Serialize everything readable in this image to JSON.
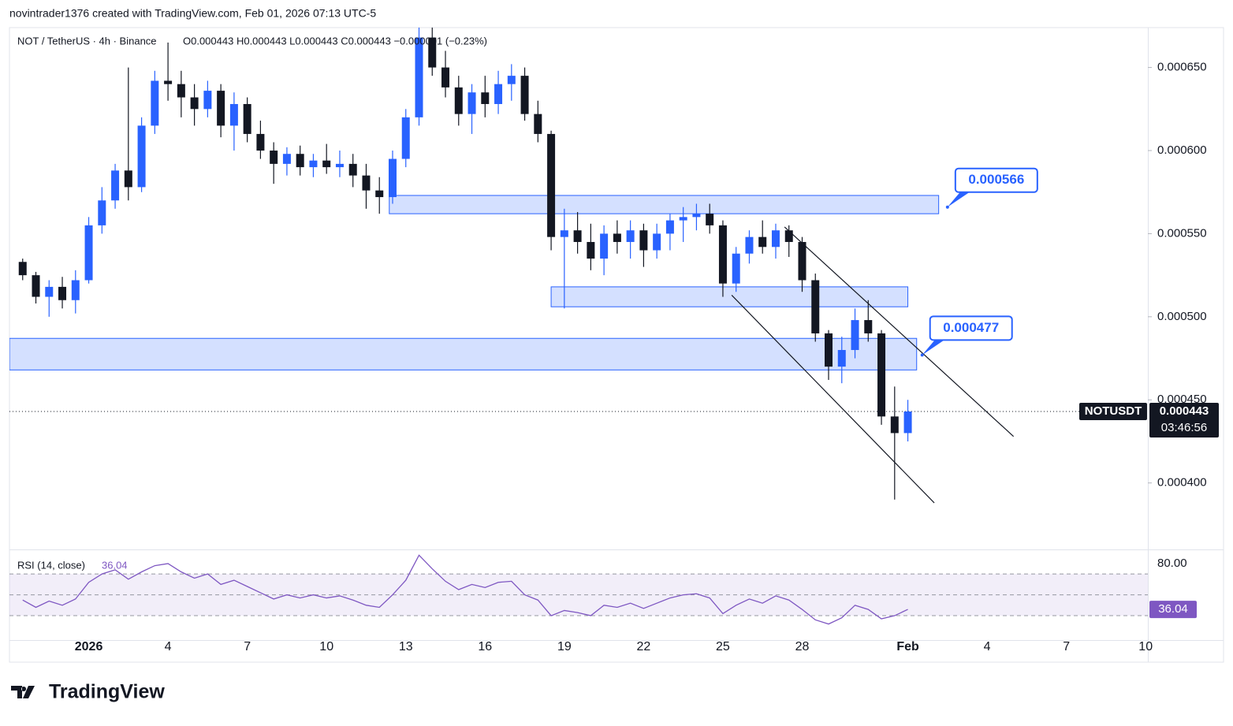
{
  "header": "novintrader1376 created with TradingView.com, Feb 01, 2026 07:13 UTC-5",
  "brand": "TradingView",
  "chart_data": [
    {
      "type": "candlestick",
      "title": "NOT / TetherUS · 4h · Binance",
      "ohlc_text": "O0.000443 H0.000443 L0.000443 C0.000443 −0.000001 (−0.23%)",
      "symbol": "NOTUSDT",
      "countdown": "03:46:56",
      "last_price": 0.000443,
      "up_color": "#2962ff",
      "down_color": "#131722",
      "x": [
        "2025-12-29T12:00",
        "2025-12-30T00:00",
        "2025-12-30T12:00",
        "2025-12-31T00:00",
        "2025-12-31T12:00",
        "2026-01-01T00:00",
        "2026-01-01T12:00",
        "2026-01-02T00:00",
        "2026-01-02T12:00",
        "2026-01-03T00:00",
        "2026-01-03T12:00",
        "2026-01-04T00:00",
        "2026-01-04T12:00",
        "2026-01-05T00:00",
        "2026-01-05T12:00",
        "2026-01-06T00:00",
        "2026-01-06T12:00",
        "2026-01-07T00:00",
        "2026-01-07T12:00",
        "2026-01-08T00:00",
        "2026-01-08T12:00",
        "2026-01-09T00:00",
        "2026-01-09T12:00",
        "2026-01-10T00:00",
        "2026-01-10T12:00",
        "2026-01-11T00:00",
        "2026-01-11T12:00",
        "2026-01-12T00:00",
        "2026-01-12T12:00",
        "2026-01-13T00:00",
        "2026-01-13T12:00",
        "2026-01-14T00:00",
        "2026-01-14T12:00",
        "2026-01-15T00:00",
        "2026-01-15T12:00",
        "2026-01-16T00:00",
        "2026-01-16T12:00",
        "2026-01-17T00:00",
        "2026-01-17T12:00",
        "2026-01-18T00:00",
        "2026-01-18T12:00",
        "2026-01-19T00:00",
        "2026-01-19T12:00",
        "2026-01-20T00:00",
        "2026-01-20T12:00",
        "2026-01-21T00:00",
        "2026-01-21T12:00",
        "2026-01-22T00:00",
        "2026-01-22T12:00",
        "2026-01-23T00:00",
        "2026-01-23T12:00",
        "2026-01-24T00:00",
        "2026-01-24T12:00",
        "2026-01-25T00:00",
        "2026-01-25T12:00",
        "2026-01-26T00:00",
        "2026-01-26T12:00",
        "2026-01-27T00:00",
        "2026-01-27T12:00",
        "2026-01-28T00:00",
        "2026-01-28T12:00",
        "2026-01-29T00:00",
        "2026-01-29T12:00",
        "2026-01-30T00:00",
        "2026-01-30T12:00",
        "2026-01-31T00:00",
        "2026-01-31T12:00",
        "2026-02-01T00:00"
      ],
      "open": [
        0.000533,
        0.000525,
        0.000512,
        0.000518,
        0.00051,
        0.000522,
        0.000555,
        0.00057,
        0.000588,
        0.000578,
        0.000615,
        0.000642,
        0.00064,
        0.000632,
        0.000625,
        0.000636,
        0.000615,
        0.000628,
        0.00061,
        0.0006,
        0.000592,
        0.000598,
        0.00059,
        0.000594,
        0.00059,
        0.000592,
        0.000585,
        0.000576,
        0.000572,
        0.000595,
        0.00062,
        0.000668,
        0.00065,
        0.000638,
        0.000622,
        0.000635,
        0.000628,
        0.00064,
        0.000645,
        0.000622,
        0.00061,
        0.000548,
        0.000552,
        0.000545,
        0.000535,
        0.00055,
        0.000545,
        0.000552,
        0.00054,
        0.00055,
        0.000558,
        0.00056,
        0.000562,
        0.000555,
        0.00052,
        0.000538,
        0.000548,
        0.000542,
        0.000552,
        0.000545,
        0.000522,
        0.00049,
        0.00047,
        0.00048,
        0.000498,
        0.00049,
        0.00044,
        0.00043
      ],
      "high": [
        0.000535,
        0.000527,
        0.000522,
        0.000524,
        0.000528,
        0.00056,
        0.000578,
        0.000592,
        0.00065,
        0.00062,
        0.000648,
        0.000665,
        0.000648,
        0.00064,
        0.000642,
        0.00064,
        0.000635,
        0.000632,
        0.000618,
        0.000605,
        0.000602,
        0.000603,
        0.000598,
        0.000604,
        0.0006,
        0.000598,
        0.000592,
        0.000584,
        0.0006,
        0.000625,
        0.000674,
        0.000674,
        0.00066,
        0.000645,
        0.00064,
        0.000645,
        0.000648,
        0.000652,
        0.00065,
        0.00063,
        0.000612,
        0.000565,
        0.000563,
        0.000556,
        0.000555,
        0.000558,
        0.000558,
        0.000556,
        0.000556,
        0.000562,
        0.000566,
        0.000568,
        0.000568,
        0.000558,
        0.000542,
        0.000552,
        0.000558,
        0.000556,
        0.000555,
        0.000548,
        0.000526,
        0.000492,
        0.000488,
        0.000505,
        0.00051,
        0.000492,
        0.000458,
        0.00045
      ],
      "low": [
        0.000522,
        0.000508,
        0.0005,
        0.000505,
        0.000502,
        0.00052,
        0.00055,
        0.000565,
        0.00057,
        0.000575,
        0.00061,
        0.00063,
        0.00062,
        0.000615,
        0.00062,
        0.000608,
        0.0006,
        0.000605,
        0.000595,
        0.00058,
        0.000585,
        0.000585,
        0.000584,
        0.000586,
        0.000584,
        0.000578,
        0.000565,
        0.000562,
        0.000568,
        0.00059,
        0.000615,
        0.000645,
        0.000632,
        0.000615,
        0.00061,
        0.00062,
        0.000622,
        0.00063,
        0.000618,
        0.000605,
        0.00054,
        0.000505,
        0.000538,
        0.000528,
        0.000525,
        0.000538,
        0.000535,
        0.00053,
        0.000535,
        0.00054,
        0.000545,
        0.000552,
        0.00055,
        0.000512,
        0.000515,
        0.000532,
        0.000538,
        0.000535,
        0.000536,
        0.000515,
        0.000485,
        0.000462,
        0.00046,
        0.000475,
        0.000485,
        0.000435,
        0.00039,
        0.000425
      ],
      "close": [
        0.000525,
        0.000512,
        0.000518,
        0.00051,
        0.000522,
        0.000555,
        0.00057,
        0.000588,
        0.000578,
        0.000615,
        0.000642,
        0.00064,
        0.000632,
        0.000625,
        0.000636,
        0.000615,
        0.000628,
        0.00061,
        0.0006,
        0.000592,
        0.000598,
        0.00059,
        0.000594,
        0.00059,
        0.000592,
        0.000585,
        0.000576,
        0.000572,
        0.000595,
        0.00062,
        0.000668,
        0.00065,
        0.000638,
        0.000622,
        0.000635,
        0.000628,
        0.00064,
        0.000645,
        0.000622,
        0.00061,
        0.000548,
        0.000552,
        0.000545,
        0.000535,
        0.00055,
        0.000545,
        0.000552,
        0.00054,
        0.00055,
        0.000558,
        0.00056,
        0.000562,
        0.000555,
        0.00052,
        0.000538,
        0.000548,
        0.000542,
        0.000552,
        0.000545,
        0.000522,
        0.00049,
        0.00047,
        0.00048,
        0.000498,
        0.00049,
        0.00044,
        0.00043,
        0.000443
      ],
      "xlim": [
        "2025-12-29T00:00",
        "2026-02-10T02:00"
      ],
      "xticks": [
        {
          "value": "2026-01-01T00:00",
          "label": "2026"
        },
        {
          "value": "2026-01-04T00:00",
          "label": "4"
        },
        {
          "value": "2026-01-07T00:00",
          "label": "7"
        },
        {
          "value": "2026-01-10T00:00",
          "label": "10"
        },
        {
          "value": "2026-01-13T00:00",
          "label": "13"
        },
        {
          "value": "2026-01-16T00:00",
          "label": "16"
        },
        {
          "value": "2026-01-19T00:00",
          "label": "19"
        },
        {
          "value": "2026-01-22T00:00",
          "label": "22"
        },
        {
          "value": "2026-01-25T00:00",
          "label": "25"
        },
        {
          "value": "2026-01-28T00:00",
          "label": "28"
        },
        {
          "value": "2026-02-01T00:00",
          "label": "Feb"
        },
        {
          "value": "2026-02-04T00:00",
          "label": "4"
        },
        {
          "value": "2026-02-07T00:00",
          "label": "7"
        },
        {
          "value": "2026-02-10T00:00",
          "label": "10"
        }
      ],
      "ylim": [
        0.00036,
        0.000674
      ],
      "yticks": [
        {
          "value": 0.0004,
          "label": "0.000400"
        },
        {
          "value": 0.00045,
          "label": "0.000450"
        },
        {
          "value": 0.0005,
          "label": "0.000500"
        },
        {
          "value": 0.00055,
          "label": "0.000550"
        },
        {
          "value": 0.0006,
          "label": "0.000600"
        },
        {
          "value": 0.00065,
          "label": "0.000650"
        }
      ],
      "zones": [
        {
          "x": [
            "2026-01-12T09:00",
            "2026-02-02T04:00"
          ],
          "range": [
            0.000562,
            0.000573
          ]
        },
        {
          "x": [
            "2026-01-18T12:00",
            "2026-02-01T00:00"
          ],
          "range": [
            0.000506,
            0.000518
          ]
        },
        {
          "x": [
            "2025-12-29T00:00",
            "2026-02-01T08:00"
          ],
          "range": [
            0.000468,
            0.000487
          ]
        }
      ],
      "trendlines": [
        {
          "x": [
            "2026-01-27T08:00",
            "2026-02-05T00:00"
          ],
          "y": [
            0.000554,
            0.000428
          ]
        },
        {
          "x": [
            "2026-01-25T08:00",
            "2026-02-02T00:00"
          ],
          "y": [
            0.000513,
            0.000388
          ]
        }
      ],
      "callouts": [
        {
          "x": "2026-02-02T12:00",
          "value": 0.000566
        },
        {
          "x": "2026-02-01T13:00",
          "value": 0.000477
        }
      ]
    },
    {
      "type": "line",
      "title": "RSI (14, close)",
      "color": "#7e57c2",
      "values": [
        45,
        38,
        44,
        40,
        46,
        62,
        70,
        74,
        65,
        72,
        78,
        80,
        72,
        66,
        70,
        60,
        64,
        58,
        52,
        46,
        50,
        47,
        50,
        47,
        49,
        45,
        40,
        38,
        50,
        64,
        88,
        75,
        63,
        55,
        60,
        57,
        62,
        63,
        50,
        45,
        30,
        35,
        33,
        30,
        40,
        38,
        42,
        37,
        42,
        47,
        50,
        51,
        47,
        32,
        40,
        46,
        42,
        49,
        45,
        36,
        26,
        22,
        28,
        40,
        36,
        27,
        30,
        36.04
      ],
      "ylim": [
        6.6,
        92.8
      ],
      "yticks": [
        {
          "value": 80,
          "label": "80.00"
        }
      ],
      "levels": [
        70,
        50,
        30
      ]
    }
  ]
}
